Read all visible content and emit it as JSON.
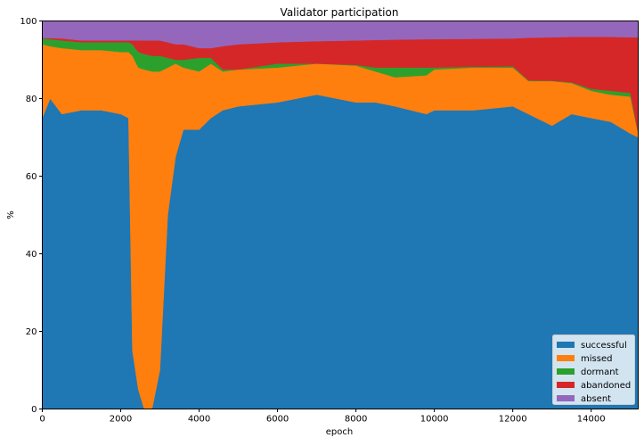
{
  "chart_data": {
    "type": "area",
    "stacked": true,
    "title": "Validator participation",
    "xlabel": "epoch",
    "ylabel": "%",
    "xlim": [
      0,
      15200
    ],
    "ylim": [
      0,
      100
    ],
    "xticks": [
      0,
      2000,
      4000,
      6000,
      8000,
      10000,
      12000,
      14000
    ],
    "xtick_labels": [
      "0",
      "2000",
      "4000",
      "6000",
      "8000",
      "10000",
      "12000",
      "14000"
    ],
    "yticks": [
      0,
      20,
      40,
      60,
      80,
      100
    ],
    "ytick_labels": [
      "0",
      "20",
      "40",
      "60",
      "80",
      "100"
    ],
    "grid": false,
    "legend_position": "lower-right",
    "x": [
      0,
      200,
      500,
      1000,
      1500,
      2000,
      2200,
      2300,
      2450,
      2600,
      2800,
      3000,
      3200,
      3400,
      3600,
      4000,
      4300,
      4600,
      5000,
      6000,
      7000,
      8000,
      8500,
      9000,
      9800,
      10000,
      11000,
      12000,
      12400,
      13000,
      13500,
      14000,
      14500,
      15000,
      15200
    ],
    "series": [
      {
        "name": "successful",
        "color": "#1f77b4",
        "values": [
          75,
          80,
          76,
          77,
          77,
          76,
          75,
          15,
          5,
          0,
          0,
          10,
          50,
          65,
          72,
          72,
          75,
          77,
          78,
          79,
          81,
          79,
          79,
          78,
          76,
          77,
          77,
          78,
          76,
          73,
          76,
          75,
          74,
          71,
          70
        ]
      },
      {
        "name": "missed",
        "color": "#ff7f0e",
        "values": [
          19,
          13.5,
          17,
          15.5,
          15.5,
          16,
          17,
          76,
          83,
          87.5,
          87,
          77,
          38,
          24,
          16,
          15,
          14,
          10,
          9.5,
          9,
          8,
          9.5,
          8,
          7.5,
          10,
          10.5,
          11,
          10,
          8.5,
          11.5,
          8,
          7,
          7,
          9.5,
          1
        ]
      },
      {
        "name": "dormant",
        "color": "#2ca02c",
        "values": [
          1.5,
          1.8,
          2,
          2,
          2,
          2.5,
          2.5,
          3,
          4,
          4,
          4,
          4,
          2.5,
          1,
          2,
          3.5,
          1.5,
          0.5,
          0,
          1,
          0,
          0.2,
          1,
          2.5,
          2,
          0.5,
          0.2,
          0.3,
          0.2,
          0.1,
          0.2,
          0.5,
          1,
          1,
          0.2
        ]
      },
      {
        "name": "abandoned",
        "color": "#d62728",
        "values": [
          0.1,
          0.3,
          0.5,
          0.5,
          0.5,
          0.5,
          0.5,
          1,
          3,
          3.5,
          4,
          4,
          4,
          4,
          4,
          2.5,
          2.5,
          6,
          6.5,
          5.5,
          5.8,
          6.3,
          7.1,
          7.2,
          7.3,
          7.3,
          7.2,
          7.2,
          11,
          11.2,
          11.7,
          13.4,
          13.9,
          14.3,
          24.6
        ]
      },
      {
        "name": "absent",
        "color": "#9467bd",
        "values": [
          4.4,
          4.4,
          4.5,
          5,
          5,
          5,
          5,
          5,
          5,
          5,
          5,
          5,
          5.5,
          6,
          6,
          7,
          7,
          6.5,
          6,
          5.5,
          5.2,
          5,
          4.9,
          4.8,
          4.7,
          4.7,
          4.6,
          4.5,
          4.3,
          4.2,
          4.1,
          4.1,
          4.1,
          4.2,
          4.2
        ]
      }
    ]
  }
}
